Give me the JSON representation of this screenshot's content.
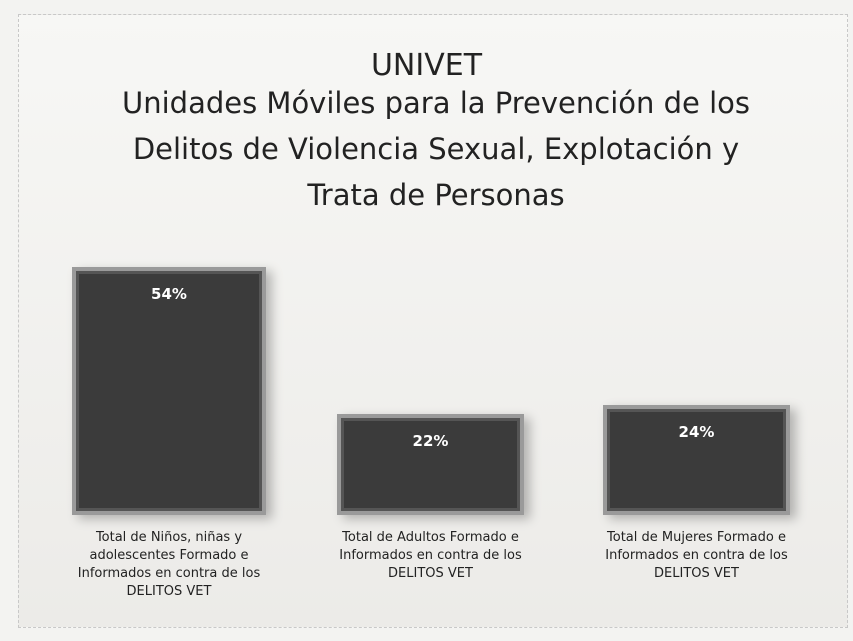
{
  "chart_data": {
    "type": "bar",
    "title": "UNIVET",
    "subtitle": "Unidades Móviles para la Prevención de los Delitos de Violencia Sexual, Explotación y Trata de Personas",
    "categories": [
      "Total de Niños, niñas y adolescentes Formado e Informados en contra de los DELITOS VET",
      "Total de Adultos Formado e Informados en contra de los DELITOS VET",
      "Total de Mujeres Formado e Informados en contra de los DELITOS VET"
    ],
    "values": [
      54,
      22,
      24
    ],
    "value_labels": [
      "54%",
      "22%",
      "24%"
    ],
    "color": "#3b3b3b"
  }
}
